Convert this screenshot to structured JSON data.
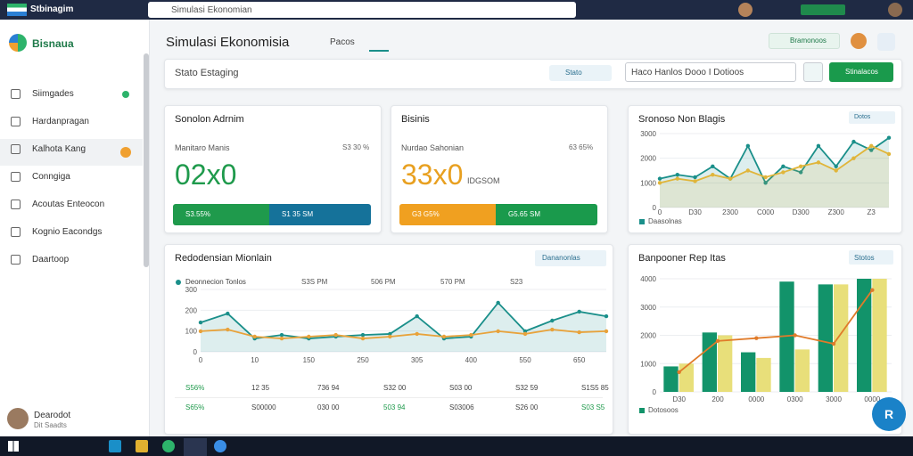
{
  "header": {
    "app_name": "Stbinagim",
    "search_placeholder": "Simulasi Ekonomian"
  },
  "sidebar": {
    "brand": "Bisnaua",
    "items": [
      "Siimgades",
      "Hardanpragan",
      "Kalhota Kang",
      "Conngiga",
      "Acoutas Enteocon",
      "Kognio Eacondgs",
      "Daartoop"
    ],
    "user": {
      "name": "Dearodot",
      "role": "Dit Saadts"
    }
  },
  "page": {
    "title": "Simulasi Ekonomisia",
    "tab": "Pacos",
    "action": "Bramonoos"
  },
  "filter": {
    "label": "Stato Estaging",
    "chip": "Stato",
    "select": "Haco Hanlos Dooo I Dotioos",
    "button": "Stinalacos"
  },
  "cards": [
    {
      "title": "Sonolon Adrnim",
      "subtitle": "Manitaro Manis",
      "change": "S3 30 %",
      "value": "02x0",
      "segments": [
        "S3.55%",
        "S1 35 SM"
      ]
    },
    {
      "title": "Bisinis",
      "subtitle": "Nurdao Sahonian",
      "change": "63 65%",
      "value": "33x0",
      "extra": "IDGSOM",
      "segments": [
        "G3 G5%",
        "G5.65 SM"
      ]
    }
  ],
  "charts": [
    {
      "type": "line",
      "title": "Sronoso Non Blagis",
      "menu": "Dotos",
      "categories": [
        "0",
        null,
        "D30",
        null,
        "2300",
        null,
        "C000",
        null,
        "D300",
        null,
        "Z300",
        null,
        "Z3",
        null
      ],
      "series": [
        {
          "name": "Daasolnas",
          "color": "#1a8f8a",
          "area": true,
          "values": [
            1170,
            1330,
            1230,
            1670,
            1170,
            2500,
            1000,
            1670,
            1430,
            2500,
            1670,
            2670,
            2330,
            2830
          ]
        },
        {
          "color": "#e0b53a",
          "area": true,
          "values": [
            1000,
            1170,
            1070,
            1330,
            1170,
            1500,
            1230,
            1430,
            1670,
            1830,
            1500,
            2000,
            2500,
            2170
          ]
        }
      ],
      "ylim": [
        0,
        3000
      ],
      "yticks": [
        0,
        1000,
        2000,
        3000
      ]
    },
    {
      "type": "line",
      "title": "Redodensian Mionlain",
      "menu": "Dananonlas",
      "legend": "Deonnecion Tonlos",
      "header_values": [
        "S3S PM",
        "506 PM",
        "570 PM",
        "S23"
      ],
      "categories": [
        "0",
        null,
        "10",
        null,
        "150",
        null,
        "250",
        null,
        "305",
        null,
        "400",
        null,
        "550",
        null,
        "650",
        null
      ],
      "series": [
        {
          "color": "#1a8f8a",
          "area": true,
          "values": [
            141,
            184,
            64,
            81,
            64,
            73,
            81,
            86,
            171,
            64,
            73,
            236,
            99,
            150,
            193,
            171
          ]
        },
        {
          "color": "#e8a23a",
          "values": [
            99,
            107,
            73,
            64,
            73,
            81,
            64,
            73,
            86,
            73,
            81,
            99,
            86,
            107,
            94,
            99
          ]
        }
      ],
      "ylim": [
        0,
        300
      ],
      "yticks": [
        0,
        100,
        200,
        300
      ],
      "table": [
        [
          "S56%",
          "12 35",
          "736 94",
          "S32 00",
          "S03 00",
          "S32 59",
          "S1S5 85"
        ],
        [
          "S65%",
          "S00000",
          "030 00",
          "503 94",
          "S03006",
          "S26 00",
          "S03 S5"
        ]
      ]
    },
    {
      "type": "bar",
      "title": "Banpooner Rep Itas",
      "menu": "Stotos",
      "categories": [
        "D30",
        "200",
        "0000",
        "0300",
        "3000",
        "0000"
      ],
      "series": [
        {
          "name": "Dotosoos",
          "color": "#12936a",
          "values": [
            900,
            2100,
            1400,
            3900,
            3800,
            4000
          ]
        },
        {
          "color": "#e8df7a",
          "values": [
            1000,
            2000,
            1200,
            1500,
            3800,
            4000
          ]
        },
        {
          "color": "#e07b2a",
          "mark": "line",
          "values": [
            700,
            1800,
            1900,
            2000,
            1700,
            3600
          ]
        }
      ],
      "ylim": [
        0,
        4000
      ],
      "yticks": [
        0,
        1000,
        2000,
        3000,
        4000
      ]
    }
  ],
  "fab": "R"
}
